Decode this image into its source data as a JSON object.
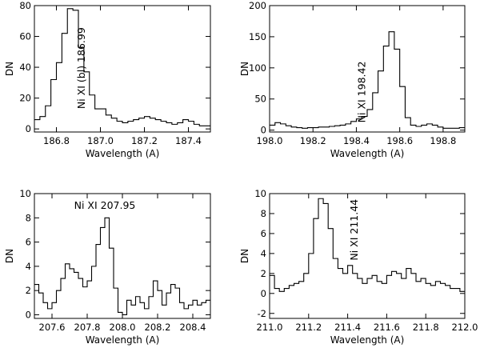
{
  "chart_data": [
    {
      "type": "line",
      "xlabel": "Wavelength (A)",
      "ylabel": "DN",
      "xlim": [
        186.7,
        187.5
      ],
      "ylim": [
        -2,
        80
      ],
      "xticks": [
        186.8,
        187.0,
        187.2,
        187.4
      ],
      "xtick_labels": [
        "186.8",
        "187.0",
        "187.2",
        "187.4"
      ],
      "yticks": [
        0,
        20,
        40,
        60,
        80
      ],
      "ytick_labels": [
        "0",
        "20",
        "40",
        "60",
        "80"
      ],
      "annotation": {
        "text": "Ni XI (bl) 186.99",
        "x": 186.93,
        "y": 13,
        "rotate": -90
      },
      "x": [
        186.7,
        186.725,
        186.75,
        186.775,
        186.8,
        186.825,
        186.85,
        186.875,
        186.9,
        186.925,
        186.95,
        186.975,
        187.0,
        187.025,
        187.05,
        187.075,
        187.1,
        187.125,
        187.15,
        187.175,
        187.2,
        187.225,
        187.25,
        187.275,
        187.3,
        187.325,
        187.35,
        187.375,
        187.4,
        187.425,
        187.45,
        187.475
      ],
      "y": [
        6,
        8,
        15,
        32,
        43,
        62,
        78,
        77,
        53,
        37,
        22,
        13,
        13,
        9,
        7,
        5,
        4,
        5,
        6,
        7,
        8,
        7,
        6,
        5,
        4,
        3,
        4,
        6,
        5,
        3,
        2,
        2
      ]
    },
    {
      "type": "line",
      "xlabel": "Wavelength (A)",
      "ylabel": "DN",
      "xlim": [
        198.0,
        198.9
      ],
      "ylim": [
        -3,
        200
      ],
      "xticks": [
        198.0,
        198.2,
        198.4,
        198.6,
        198.8
      ],
      "xtick_labels": [
        "198.0",
        "198.2",
        "198.4",
        "198.6",
        "198.8"
      ],
      "yticks": [
        0,
        50,
        100,
        150,
        200
      ],
      "ytick_labels": [
        "0",
        "50",
        "100",
        "150",
        "200"
      ],
      "annotation": {
        "text": "Ni XI 198.42",
        "x": 198.44,
        "y": 12,
        "rotate": -90
      },
      "x": [
        198.0,
        198.025,
        198.05,
        198.075,
        198.1,
        198.125,
        198.15,
        198.175,
        198.2,
        198.225,
        198.25,
        198.275,
        198.3,
        198.325,
        198.35,
        198.375,
        198.4,
        198.425,
        198.45,
        198.475,
        198.5,
        198.525,
        198.55,
        198.575,
        198.6,
        198.625,
        198.65,
        198.675,
        198.7,
        198.725,
        198.75,
        198.775,
        198.8,
        198.825,
        198.85,
        198.875
      ],
      "y": [
        8,
        12,
        10,
        7,
        5,
        4,
        3,
        4,
        4,
        5,
        5,
        6,
        7,
        8,
        10,
        14,
        18,
        22,
        33,
        60,
        95,
        135,
        158,
        130,
        70,
        20,
        8,
        6,
        8,
        10,
        8,
        5,
        3,
        3,
        3,
        4
      ]
    },
    {
      "type": "line",
      "xlabel": "Wavelength (A)",
      "ylabel": "DN",
      "xlim": [
        207.5,
        208.5
      ],
      "ylim": [
        -0.3,
        10
      ],
      "xticks": [
        207.6,
        207.8,
        208.0,
        208.2,
        208.4
      ],
      "xtick_labels": [
        "207.6",
        "207.8",
        "208.0",
        "208.2",
        "208.4"
      ],
      "yticks": [
        0,
        2,
        4,
        6,
        8,
        10
      ],
      "ytick_labels": [
        "0",
        "2",
        "4",
        "6",
        "8",
        "10"
      ],
      "annotation": {
        "text": "Ni XI 207.95",
        "x": 207.9,
        "y": 8.75,
        "rotate": 0
      },
      "x": [
        207.5,
        207.525,
        207.55,
        207.575,
        207.6,
        207.625,
        207.65,
        207.675,
        207.7,
        207.725,
        207.75,
        207.775,
        207.8,
        207.825,
        207.85,
        207.875,
        207.9,
        207.925,
        207.95,
        207.975,
        208.0,
        208.025,
        208.05,
        208.075,
        208.1,
        208.125,
        208.15,
        208.175,
        208.2,
        208.225,
        208.25,
        208.275,
        208.3,
        208.325,
        208.35,
        208.375,
        208.4,
        208.425,
        208.45,
        208.475
      ],
      "y": [
        2.5,
        1.8,
        1.0,
        0.5,
        1.0,
        2.0,
        3.0,
        4.2,
        3.8,
        3.5,
        3.0,
        2.3,
        2.8,
        4.0,
        5.8,
        7.2,
        8.0,
        5.5,
        2.2,
        0.2,
        0,
        1.2,
        0.8,
        1.5,
        1.0,
        0.5,
        1.5,
        2.8,
        2.0,
        0.8,
        1.8,
        2.5,
        2.2,
        1.0,
        0.5,
        0.8,
        1.2,
        0.8,
        1.0,
        1.2
      ]
    },
    {
      "type": "line",
      "xlabel": "Wavelength (A)",
      "ylabel": "DN",
      "xlim": [
        211.0,
        212.0
      ],
      "ylim": [
        -2.5,
        10
      ],
      "xticks": [
        211.0,
        211.2,
        211.4,
        211.6,
        211.8,
        212.0
      ],
      "xtick_labels": [
        "211.0",
        "211.2",
        "211.4",
        "211.6",
        "211.8",
        "212.0"
      ],
      "yticks": [
        -2,
        0,
        2,
        4,
        6,
        8,
        10
      ],
      "ytick_labels": [
        "-2",
        "0",
        "2",
        "4",
        "6",
        "8",
        "10"
      ],
      "annotation": {
        "text": "Ni XI 211.44",
        "x": 211.45,
        "y": 3.3,
        "rotate": -90
      },
      "x": [
        211.0,
        211.025,
        211.05,
        211.075,
        211.1,
        211.125,
        211.15,
        211.175,
        211.2,
        211.225,
        211.25,
        211.275,
        211.3,
        211.325,
        211.35,
        211.375,
        211.4,
        211.425,
        211.45,
        211.475,
        211.5,
        211.525,
        211.55,
        211.575,
        211.6,
        211.625,
        211.65,
        211.675,
        211.7,
        211.725,
        211.75,
        211.775,
        211.8,
        211.825,
        211.85,
        211.875,
        211.9,
        211.925,
        211.95,
        211.975
      ],
      "y": [
        1.8,
        0.5,
        0.2,
        0.5,
        0.8,
        1.0,
        1.2,
        2.0,
        4.0,
        7.5,
        9.5,
        9.0,
        6.5,
        3.5,
        2.5,
        2.0,
        2.8,
        2.0,
        1.5,
        1.0,
        1.5,
        1.8,
        1.2,
        1.0,
        1.8,
        2.2,
        2.0,
        1.5,
        2.5,
        2.0,
        1.2,
        1.5,
        1.0,
        0.8,
        1.2,
        1.0,
        0.8,
        0.5,
        0.5,
        0.2
      ]
    }
  ]
}
